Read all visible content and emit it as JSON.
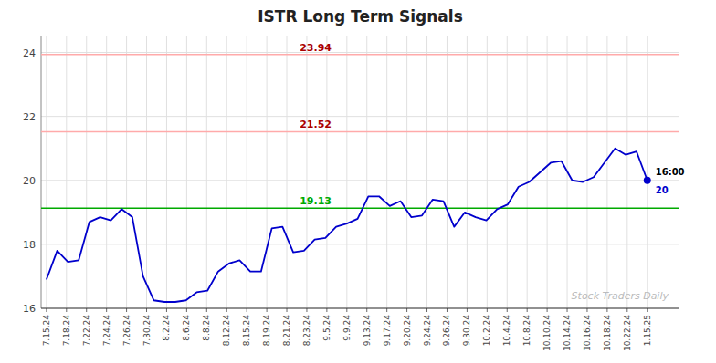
{
  "chart_data": {
    "type": "line",
    "title": "ISTR Long Term Signals",
    "watermark": "Stock Traders Daily",
    "color": "#0000cc",
    "grid": true,
    "x": [
      0,
      1,
      2,
      3,
      4,
      5,
      6,
      7,
      8,
      9,
      10,
      11,
      12,
      13,
      14,
      15,
      16,
      17,
      18,
      19,
      20,
      21,
      22,
      23,
      24,
      25,
      26,
      27,
      28,
      29,
      30,
      31,
      32,
      33,
      34,
      35,
      36,
      37,
      38,
      39,
      40,
      41,
      42,
      43,
      44,
      45,
      46,
      47,
      48,
      49,
      50,
      51,
      52,
      53,
      54,
      55,
      56
    ],
    "values": [
      16.9,
      17.8,
      17.45,
      17.5,
      18.7,
      18.85,
      18.75,
      19.1,
      18.85,
      17.0,
      16.25,
      16.2,
      16.2,
      16.25,
      16.5,
      16.55,
      17.15,
      17.4,
      17.5,
      17.15,
      17.15,
      18.5,
      18.55,
      17.75,
      17.8,
      18.15,
      18.2,
      18.55,
      18.65,
      18.8,
      19.5,
      19.5,
      19.2,
      19.35,
      18.85,
      18.9,
      19.4,
      19.35,
      18.55,
      19.0,
      18.85,
      18.75,
      19.1,
      19.25,
      19.8,
      19.95,
      20.25,
      20.55,
      20.6,
      20.0,
      19.95,
      20.1,
      20.55,
      21.0,
      20.8,
      20.9,
      20.0
    ],
    "xlim": [
      -0.5,
      59
    ],
    "xticks": [
      {
        "value": 0,
        "label": "7.15.24"
      },
      {
        "value": 1.8666666666666667,
        "label": "7.18.24"
      },
      {
        "value": 3.7333333333333334,
        "label": "7.22.24"
      },
      {
        "value": 5.6,
        "label": "7.24.24"
      },
      {
        "value": 7.466666666666667,
        "label": "7.26.24"
      },
      {
        "value": 9.333333333333334,
        "label": "7.30.24"
      },
      {
        "value": 11.2,
        "label": "8.2.24"
      },
      {
        "value": 13.066666666666666,
        "label": "8.6.24"
      },
      {
        "value": 14.933333333333334,
        "label": "8.8.24"
      },
      {
        "value": 16.8,
        "label": "8.12.24"
      },
      {
        "value": 18.666666666666668,
        "label": "8.15.24"
      },
      {
        "value": 20.533333333333335,
        "label": "8.19.24"
      },
      {
        "value": 22.4,
        "label": "8.21.24"
      },
      {
        "value": 24.266666666666666,
        "label": "8.23.24"
      },
      {
        "value": 26.133333333333333,
        "label": "9.5.24"
      },
      {
        "value": 28,
        "label": "9.9.24"
      },
      {
        "value": 29.866666666666667,
        "label": "9.13.24"
      },
      {
        "value": 31.733333333333334,
        "label": "9.17.24"
      },
      {
        "value": 33.6,
        "label": "9.20.24"
      },
      {
        "value": 35.46666666666667,
        "label": "9.24.24"
      },
      {
        "value": 37.333333333333336,
        "label": "9.26.24"
      },
      {
        "value": 39.2,
        "label": "9.30.24"
      },
      {
        "value": 41.06666666666667,
        "label": "10.2.24"
      },
      {
        "value": 42.93333333333333,
        "label": "10.4.24"
      },
      {
        "value": 44.8,
        "label": "10.8.24"
      },
      {
        "value": 46.666666666666664,
        "label": "10.10.24"
      },
      {
        "value": 48.53333333333333,
        "label": "10.14.24"
      },
      {
        "value": 50.4,
        "label": "10.16.24"
      },
      {
        "value": 52.266666666666666,
        "label": "10.18.24"
      },
      {
        "value": 54.13333333333333,
        "label": "10.22.24"
      },
      {
        "value": 56,
        "label": "1.15.25"
      }
    ],
    "ylim": [
      16,
      24.5
    ],
    "yticks": [
      16,
      18,
      20,
      22,
      24
    ],
    "hlines": [
      {
        "value": 23.94,
        "label": "23.94",
        "color": "#ffaaaa",
        "label_color": "#aa0000"
      },
      {
        "value": 21.52,
        "label": "21.52",
        "color": "#ffaaaa",
        "label_color": "#aa0000"
      },
      {
        "value": 19.13,
        "label": "19.13",
        "color": "#00aa00",
        "label_color": "#00aa00"
      }
    ],
    "last_point": {
      "label": "16:00",
      "value": 20,
      "marker": "circle"
    }
  }
}
